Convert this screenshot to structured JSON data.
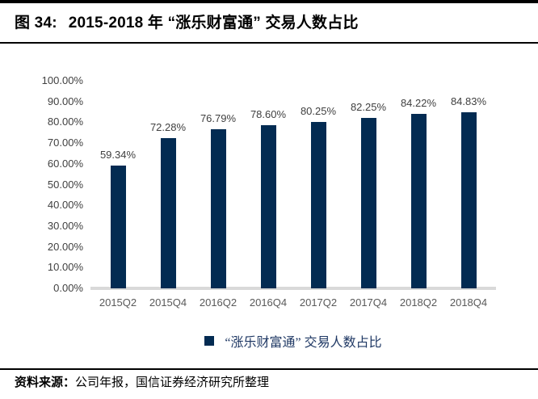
{
  "figure": {
    "title_prefix": "图 34:",
    "title_main": "2015-2018 年 “涨乐财富通” 交易人数占比"
  },
  "chart_data": {
    "type": "bar",
    "title": "2015-2018 年 “涨乐财富通” 交易人数占比",
    "categories": [
      "2015Q2",
      "2015Q4",
      "2016Q2",
      "2016Q4",
      "2017Q2",
      "2017Q4",
      "2018Q2",
      "2018Q4"
    ],
    "values": [
      59.34,
      72.28,
      76.79,
      78.6,
      80.25,
      82.25,
      84.22,
      84.83
    ],
    "data_labels": [
      "59.34%",
      "72.28%",
      "76.79%",
      "78.60%",
      "80.25%",
      "82.25%",
      "84.22%",
      "84.83%"
    ],
    "xlabel": "",
    "ylabel": "",
    "ylim": [
      0,
      100
    ],
    "ytick_values": [
      0,
      10,
      20,
      30,
      40,
      50,
      60,
      70,
      80,
      90,
      100
    ],
    "ytick_labels": [
      "0.00%",
      "10.00%",
      "20.00%",
      "30.00%",
      "40.00%",
      "50.00%",
      "60.00%",
      "70.00%",
      "80.00%",
      "90.00%",
      "100.00%"
    ],
    "grid": false,
    "legend_position": "bottom",
    "legend_entries": [
      "“涨乐财富通” 交易人数占比"
    ],
    "bar_color": "#032b52",
    "baseline_color": "#d9d9d9"
  },
  "legend": {
    "label": "“涨乐财富通” 交易人数占比",
    "marker_color": "#032b52"
  },
  "footer": {
    "source_label": "资料来源：",
    "source_text": "公司年报，国信证券经济研究所整理"
  },
  "colors": {
    "bar": "#032b52",
    "axis_text": "#404040",
    "category_text": "#595959",
    "legend_text": "#1f3864",
    "baseline": "#d9d9d9",
    "rule": "#000000"
  }
}
